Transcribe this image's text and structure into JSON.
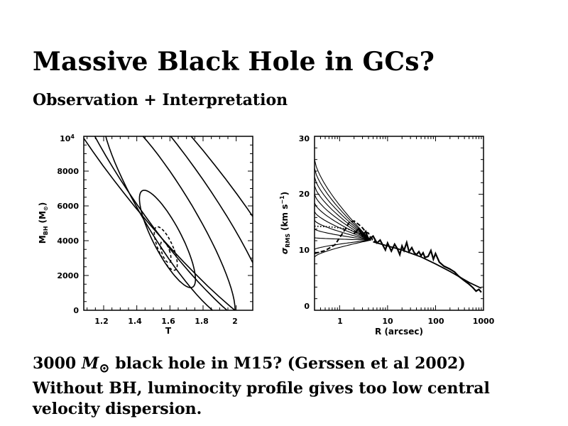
{
  "slide": {
    "title": "Massive Black Hole in GCs?",
    "subtitle": "Observation + Interpretation",
    "caption": {
      "mass_value": "3000",
      "mass_symbol": "M",
      "sun_symbol": "⊙",
      "line1_rest": "black hole in M15? (Gerssen et al 2002)",
      "line2": "Without BH, luminocity profile gives too low central",
      "line3": "velocity dispersion."
    }
  },
  "chart_data": [
    {
      "type": "contour",
      "xlabel": "T",
      "ylabel_main": "M",
      "ylabel_sub": "BH",
      "ylabel_unit": "(M",
      "ylabel_unit_sub": "⊙",
      "ylabel_close": ")",
      "xlim": [
        1.08,
        2.1
      ],
      "ylim": [
        0,
        10000
      ],
      "x_ticks": [
        "1.2",
        "1.4",
        "1.6",
        "1.8",
        "2"
      ],
      "y_ticks": [
        "0",
        "2000",
        "4000",
        "6000",
        "8000"
      ],
      "y_top_tick_base": "10",
      "y_top_tick_exp": "4",
      "contours": [
        {
          "style": "dashed",
          "center": [
            1.575,
            3350
          ],
          "half_width": 0.025,
          "half_height": 620,
          "tilt": -0.03
        },
        {
          "style": "dashed",
          "center": [
            1.575,
            3550
          ],
          "half_width": 0.048,
          "half_height": 1250,
          "tilt": -0.04
        },
        {
          "style": "solid",
          "center": [
            1.585,
            4100
          ],
          "half_width": 0.095,
          "half_height": 2800,
          "tilt": -0.05
        },
        {
          "style": "solid",
          "center": [
            1.595,
            5500
          ],
          "half_width": 0.17,
          "half_height": 6000,
          "tilt": -0.06
        },
        {
          "style": "solid",
          "center": [
            1.6,
            6800
          ],
          "half_width": 0.25,
          "half_height": 8000,
          "tilt": -0.07
        },
        {
          "style": "solid",
          "center": [
            1.6,
            7500
          ],
          "half_width": 0.34,
          "half_height": 9500,
          "tilt": -0.08
        }
      ]
    },
    {
      "type": "line",
      "xscale": "log",
      "xlabel": "R (arcsec)",
      "ylabel_main": "σ",
      "ylabel_sub": "RMS",
      "ylabel_unit": "(km s",
      "ylabel_exp": "−1",
      "ylabel_close": ")",
      "xlim": [
        0.3,
        1000
      ],
      "ylim": [
        0,
        30
      ],
      "x_ticks": [
        "1",
        "10",
        "100",
        "1000"
      ],
      "x_tick_values": [
        1,
        10,
        100,
        1000
      ],
      "y_ticks": [
        "0",
        "10",
        "20",
        "30"
      ],
      "y_tick_values": [
        0,
        10,
        20,
        30
      ],
      "model_center_values": [
        26,
        24.5,
        23,
        21.5,
        20,
        18.5,
        17,
        15.5,
        14,
        12.5,
        10.5,
        9.2
      ],
      "model_outer": {
        "R": [
          5,
          10,
          20,
          50,
          100,
          200,
          500,
          900
        ],
        "sigma": [
          11.8,
          11.1,
          10.4,
          9.2,
          8,
          6.7,
          4.8,
          3.8
        ]
      },
      "observed_dashed": {
        "R": [
          0.3,
          0.5,
          0.8,
          1.2,
          1.6,
          2,
          2.5,
          3,
          3.5,
          4,
          4.5,
          5,
          5.5,
          6
        ],
        "sigma": [
          9.8,
          10.3,
          11.3,
          13.5,
          15.2,
          15.4,
          14.8,
          14.2,
          13.5,
          13.3,
          12.4,
          12.3,
          11.9,
          11.6
        ]
      },
      "observed_dotted": {
        "R": [
          0.3,
          0.6,
          1,
          1.5,
          2,
          3,
          4,
          5
        ],
        "sigma": [
          14.5,
          14.4,
          14.2,
          14,
          13.6,
          13,
          12.5,
          12.1
        ]
      },
      "observed_noisy": {
        "R": [
          2,
          2.5,
          3,
          3.5,
          4,
          5,
          6,
          7,
          8,
          9,
          10,
          12,
          14,
          16,
          18,
          20,
          22,
          25,
          28,
          32,
          36,
          40,
          45,
          50,
          55,
          60,
          70,
          80,
          90,
          100,
          120,
          150,
          200,
          250,
          300,
          400,
          500,
          600,
          700,
          800,
          900
        ],
        "sigma": [
          13.2,
          14.1,
          12.8,
          13.6,
          12.2,
          12.8,
          11.6,
          12.1,
          11.2,
          10.4,
          11.6,
          10.2,
          11.4,
          10.6,
          9.6,
          11.1,
          10.3,
          11.7,
          10.1,
          10.8,
          9.9,
          9.6,
          10.1,
          9.4,
          9.9,
          9.1,
          9.3,
          10.3,
          8.8,
          9.8,
          8.3,
          7.6,
          7.1,
          6.6,
          5.9,
          5.1,
          4.5,
          3.9,
          3.3,
          3.6,
          3.1
        ]
      }
    }
  ]
}
